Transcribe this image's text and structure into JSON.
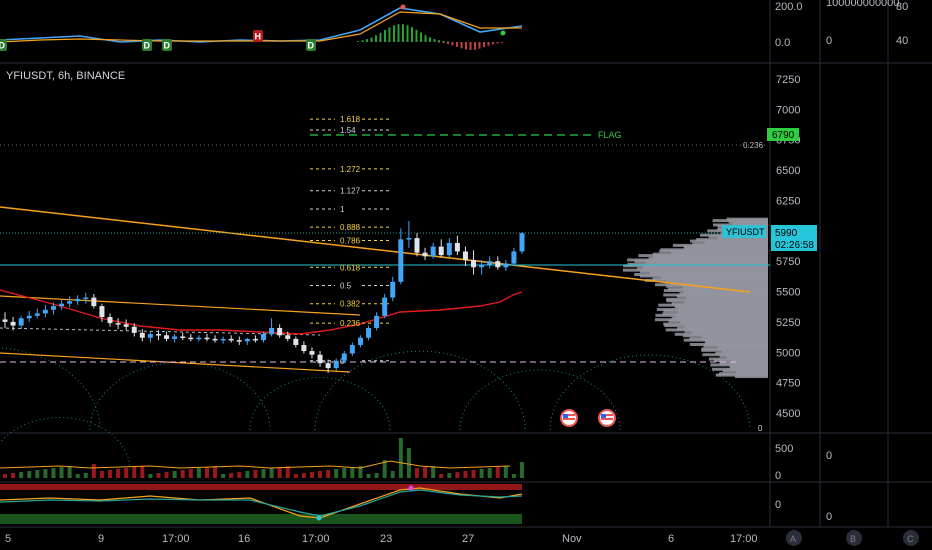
{
  "header": {
    "title": "YFIUSDT, 6h, BINANCE"
  },
  "colors": {
    "background": "#000000",
    "bull": "#26a69a",
    "bull_candle": "#42a5f5",
    "bear": "#ef5350",
    "fib_line": "#d1d4dc",
    "fib_gold": "#f5d142",
    "trendline": "#f7a21b",
    "red_line": "#e31b1b",
    "teal_line": "#26c6da",
    "flag": "#2ecc40",
    "profile": "#9598a1",
    "price_tag": "#26c6da"
  },
  "chart_data": [
    {
      "type": "candlestick",
      "title": "YFIUSDT, 6h, BINANCE",
      "ylim": [
        4400,
        7400
      ],
      "y_ticks": [
        "7250",
        "7000",
        "6750",
        "6500",
        "6250",
        "6000",
        "5750",
        "5500",
        "5250",
        "5000",
        "4750",
        "4500"
      ],
      "x_ticks": [
        "5",
        "9",
        "17:00",
        "16",
        "17:00",
        "23",
        "27",
        "Nov",
        "6",
        "17:00"
      ],
      "ohlc": [
        [
          5270,
          5330,
          5200,
          5250
        ],
        [
          5250,
          5290,
          5180,
          5220
        ],
        [
          5220,
          5300,
          5190,
          5280
        ],
        [
          5280,
          5340,
          5250,
          5300
        ],
        [
          5300,
          5360,
          5280,
          5320
        ],
        [
          5320,
          5390,
          5290,
          5350
        ],
        [
          5350,
          5410,
          5310,
          5380
        ],
        [
          5380,
          5430,
          5350,
          5400
        ],
        [
          5400,
          5460,
          5370,
          5420
        ],
        [
          5420,
          5470,
          5390,
          5440
        ],
        [
          5440,
          5490,
          5400,
          5450
        ],
        [
          5450,
          5480,
          5360,
          5380
        ],
        [
          5380,
          5400,
          5250,
          5290
        ],
        [
          5290,
          5320,
          5210,
          5240
        ],
        [
          5240,
          5280,
          5190,
          5230
        ],
        [
          5230,
          5270,
          5180,
          5210
        ],
        [
          5210,
          5240,
          5130,
          5160
        ],
        [
          5160,
          5190,
          5090,
          5120
        ],
        [
          5120,
          5170,
          5080,
          5150
        ],
        [
          5150,
          5180,
          5100,
          5140
        ],
        [
          5140,
          5170,
          5090,
          5110
        ],
        [
          5110,
          5150,
          5080,
          5130
        ],
        [
          5130,
          5160,
          5100,
          5120
        ],
        [
          5120,
          5150,
          5090,
          5110
        ],
        [
          5110,
          5140,
          5090,
          5120
        ],
        [
          5120,
          5150,
          5090,
          5110
        ],
        [
          5110,
          5140,
          5080,
          5100
        ],
        [
          5100,
          5130,
          5070,
          5110
        ],
        [
          5110,
          5140,
          5080,
          5100
        ],
        [
          5100,
          5130,
          5060,
          5090
        ],
        [
          5090,
          5120,
          5060,
          5110
        ],
        [
          5110,
          5140,
          5080,
          5100
        ],
        [
          5100,
          5170,
          5080,
          5150
        ],
        [
          5150,
          5280,
          5130,
          5200
        ],
        [
          5200,
          5230,
          5120,
          5140
        ],
        [
          5140,
          5170,
          5090,
          5110
        ],
        [
          5110,
          5130,
          5040,
          5060
        ],
        [
          5060,
          5090,
          4990,
          5010
        ],
        [
          5010,
          5040,
          4950,
          4980
        ],
        [
          4980,
          5010,
          4880,
          4910
        ],
        [
          4910,
          4940,
          4830,
          4870
        ],
        [
          4870,
          4950,
          4850,
          4930
        ],
        [
          4930,
          5010,
          4910,
          4990
        ],
        [
          4990,
          5080,
          4970,
          5060
        ],
        [
          5060,
          5140,
          5040,
          5120
        ],
        [
          5120,
          5220,
          5100,
          5200
        ],
        [
          5200,
          5330,
          5180,
          5300
        ],
        [
          5300,
          5480,
          5280,
          5450
        ],
        [
          5450,
          5620,
          5420,
          5580
        ],
        [
          5580,
          6020,
          5560,
          5930
        ],
        [
          5930,
          6080,
          5860,
          5940
        ],
        [
          5940,
          5980,
          5790,
          5820
        ],
        [
          5820,
          5860,
          5760,
          5790
        ],
        [
          5790,
          5900,
          5770,
          5870
        ],
        [
          5870,
          5930,
          5780,
          5800
        ],
        [
          5800,
          5940,
          5780,
          5900
        ],
        [
          5900,
          5960,
          5800,
          5830
        ],
        [
          5830,
          5870,
          5710,
          5760
        ],
        [
          5760,
          5840,
          5640,
          5700
        ],
        [
          5700,
          5760,
          5640,
          5720
        ],
        [
          5720,
          5790,
          5690,
          5750
        ],
        [
          5750,
          5790,
          5680,
          5700
        ],
        [
          5700,
          5760,
          5670,
          5730
        ],
        [
          5730,
          5860,
          5710,
          5830
        ],
        [
          5830,
          5990,
          5810,
          5980
        ]
      ],
      "volume_profile": "horizontal histogram on right side",
      "fib_levels": [
        {
          "label": "1.618",
          "value": 6920
        },
        {
          "label": "1.54",
          "value": 6830
        },
        {
          "label": "1.272",
          "value": 6510
        },
        {
          "label": "1.127",
          "value": 6330
        },
        {
          "label": "1",
          "value": 6180
        },
        {
          "label": "0.888",
          "value": 6030
        },
        {
          "label": "0.786",
          "value": 5920
        },
        {
          "label": "0.618",
          "value": 5700
        },
        {
          "label": "0.5",
          "value": 5550
        },
        {
          "label": "0.382",
          "value": 5400
        },
        {
          "label": "0.236",
          "value": 5240
        },
        {
          "label": "0",
          "value": 4930
        }
      ],
      "annotations": {
        "flag_label": "FLAG",
        "flag_price": "6790",
        "fib_0236_right": "0.236",
        "last_price": "5990",
        "countdown": "02:26:58",
        "last_label": "YFIUSDT",
        "zero_label": "0"
      }
    },
    {
      "type": "line",
      "title": "",
      "panel": "top oscillator",
      "y_ticks": [
        "200.0",
        "0.0"
      ],
      "col2": [
        "100000000000",
        "0"
      ],
      "col3": [
        "80",
        "40"
      ],
      "markers": [
        "D",
        "D",
        "D",
        "H",
        "D"
      ]
    },
    {
      "type": "bar",
      "title": "",
      "panel": "volume",
      "y_ticks": [
        "500",
        "0"
      ],
      "col2": [
        "0"
      ]
    },
    {
      "type": "line",
      "title": "",
      "panel": "lower oscillator",
      "y_ticks": [
        "0"
      ],
      "col2": [
        "0"
      ]
    }
  ],
  "bottom_buttons": [
    "A",
    "B",
    "C"
  ]
}
